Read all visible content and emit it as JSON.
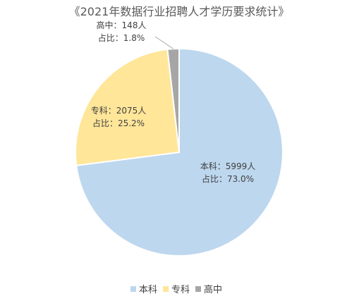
{
  "chart_data": {
    "type": "pie",
    "title": "《2021年数据行业招聘人才学历要求统计》",
    "start_angle_deg": 0,
    "direction": "clockwise",
    "categories": [
      "本科",
      "专科",
      "高中"
    ],
    "values": [
      5999,
      2075,
      148
    ],
    "colors": [
      "#bdd7ee",
      "#ffe699",
      "#a6a6a6"
    ],
    "data_labels": [
      {
        "line1": "本科：5999人",
        "line2": "占比：73.0%"
      },
      {
        "line1": "专科：2075人",
        "line2": "占比：25.2%"
      },
      {
        "line1": "高中：148人",
        "line2": "占比：1.8%"
      }
    ],
    "legend": {
      "position": "bottom",
      "items": [
        "本科",
        "专科",
        "高中"
      ]
    }
  }
}
